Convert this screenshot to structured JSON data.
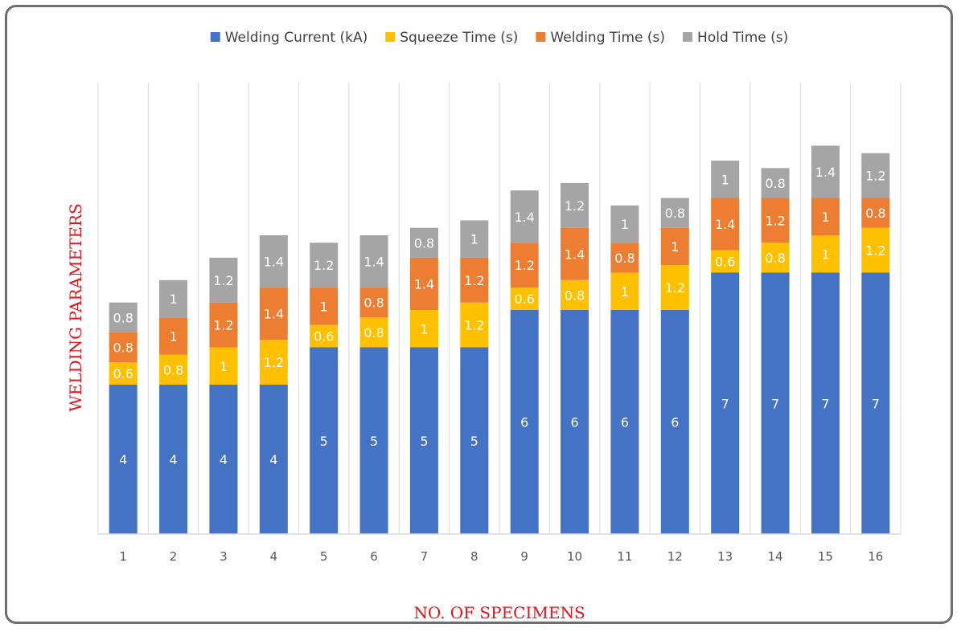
{
  "chart_data": {
    "type": "bar",
    "stacked": true,
    "categories": [
      "1",
      "2",
      "3",
      "4",
      "5",
      "6",
      "7",
      "8",
      "9",
      "10",
      "11",
      "12",
      "13",
      "14",
      "15",
      "16"
    ],
    "series": [
      {
        "name": "Welding Current (kA)",
        "color": "#4472c4",
        "values": [
          4,
          4,
          4,
          4,
          5,
          5,
          5,
          5,
          6,
          6,
          6,
          6,
          7,
          7,
          7,
          7
        ]
      },
      {
        "name": "Squeeze Time (s)",
        "color": "#ffc000",
        "values": [
          0.6,
          0.8,
          1,
          1.2,
          0.6,
          0.8,
          1,
          1.2,
          0.6,
          0.8,
          1,
          1.2,
          0.6,
          0.8,
          1,
          1.2
        ]
      },
      {
        "name": "Welding Time (s)",
        "color": "#ed7d31",
        "values": [
          0.8,
          1,
          1.2,
          1.4,
          1,
          0.8,
          1.4,
          1.2,
          1.2,
          1.4,
          0.8,
          1,
          1.4,
          1.2,
          1,
          0.8
        ]
      },
      {
        "name": "Hold Time (s)",
        "color": "#a5a5a5",
        "values": [
          0.8,
          1,
          1.2,
          1.4,
          1.2,
          1.4,
          0.8,
          1,
          1.4,
          1.2,
          1,
          0.8,
          1,
          0.8,
          1.4,
          1.2
        ]
      }
    ],
    "xlabel": "NO. OF SPECIMENS",
    "ylabel": "WELDING PARAMETERS",
    "ylim": [
      0,
      12
    ],
    "grid": "vertical",
    "legend_position": "top"
  }
}
